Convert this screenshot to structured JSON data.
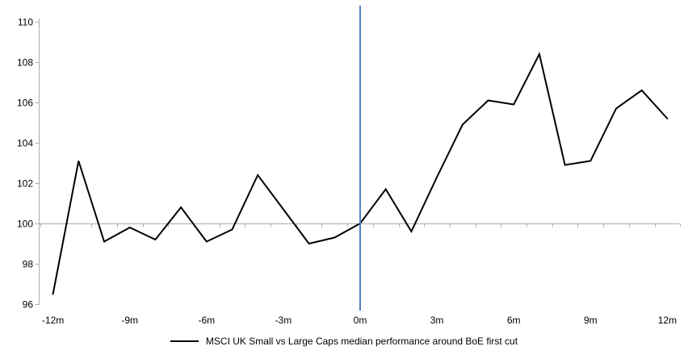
{
  "chart_data": {
    "type": "line",
    "title": "",
    "xlabel": "",
    "ylabel": "",
    "x_unit": "months relative to first cut",
    "x": [
      -12,
      -11,
      -10,
      -9,
      -8,
      -7,
      -6,
      -5,
      -4,
      -3,
      -2,
      -1,
      0,
      1,
      2,
      3,
      4,
      5,
      6,
      7,
      8,
      9,
      10,
      11,
      12
    ],
    "series": [
      {
        "name": "MSCI UK Small vs Large Caps median performance around BoE first cut",
        "color": "#000000",
        "values": [
          96.5,
          103.1,
          99.1,
          99.8,
          99.2,
          100.8,
          99.1,
          99.7,
          102.4,
          100.7,
          99.0,
          99.3,
          100.0,
          101.7,
          99.6,
          102.3,
          104.9,
          106.1,
          105.9,
          108.4,
          102.9,
          103.1,
          105.7,
          106.6,
          105.2
        ]
      }
    ],
    "ylim": [
      96,
      110
    ],
    "y_ticks": [
      96,
      98,
      100,
      102,
      104,
      106,
      108,
      110
    ],
    "x_tick_positions": [
      -12,
      -9,
      -6,
      -3,
      0,
      3,
      6,
      9,
      12
    ],
    "x_tick_labels": [
      "-12m",
      "-9m",
      "-6m",
      "-3m",
      "0m",
      "3m",
      "6m",
      "9m",
      "12m"
    ],
    "grid": "off",
    "baseline": {
      "value": 100,
      "color": "#ADADAD"
    },
    "event_line": {
      "x": 0,
      "color": "#4F81BD"
    },
    "axis_color": "#ADADAD",
    "text_color": "#000000",
    "background": "#FFFFFF",
    "legend": {
      "position": "bottom",
      "entries": [
        "MSCI UK Small vs Large Caps median performance around BoE first cut"
      ]
    }
  }
}
